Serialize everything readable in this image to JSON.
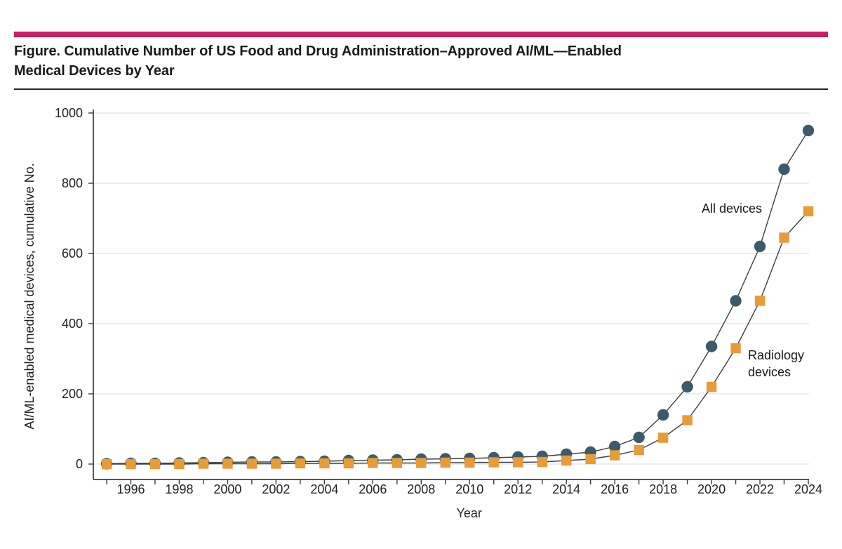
{
  "header": {
    "title_line1": "Figure. Cumulative Number of US Food and Drug Administration–Approved AI/ML—Enabled",
    "title_line2": "Medical Devices by Year"
  },
  "colors": {
    "accent_bar": "#c81e63",
    "title_text": "#1a1a1a",
    "axis": "#3b3b3b",
    "gridline": "#e9e9e9",
    "tick_text": "#222222",
    "line": "#3f3f3f",
    "all_devices_marker": "#3d5a6c",
    "radiology_marker": "#e89b37",
    "annotation_text": "#1a1a1a"
  },
  "chart_data": {
    "type": "line",
    "title": "Cumulative Number of US Food and Drug Administration–Approved AI/ML—Enabled Medical Devices by Year",
    "xlabel": "Year",
    "ylabel": "AI/ML-enabled medical devices, cumulative No.",
    "x": [
      1995,
      1996,
      1997,
      1998,
      1999,
      2000,
      2001,
      2002,
      2003,
      2004,
      2005,
      2006,
      2007,
      2008,
      2009,
      2010,
      2011,
      2012,
      2013,
      2014,
      2015,
      2016,
      2017,
      2018,
      2019,
      2020,
      2021,
      2022,
      2023,
      2024
    ],
    "xtick_labels": [
      1996,
      1998,
      2000,
      2002,
      2004,
      2006,
      2008,
      2010,
      2012,
      2014,
      2016,
      2018,
      2020,
      2022,
      2024
    ],
    "yticks": [
      0,
      200,
      400,
      600,
      800,
      1000
    ],
    "ylim": [
      0,
      1000
    ],
    "grid": "horizontal",
    "legend_position": "inline-annotations",
    "series": [
      {
        "name": "All devices",
        "marker": "circle",
        "color": "#3d5a6c",
        "values": [
          1,
          2,
          2,
          3,
          4,
          5,
          6,
          6,
          7,
          8,
          10,
          11,
          12,
          14,
          15,
          16,
          18,
          20,
          22,
          28,
          34,
          50,
          76,
          140,
          220,
          335,
          465,
          620,
          840,
          950
        ]
      },
      {
        "name": "Radiology devices",
        "marker": "square",
        "color": "#e89b37",
        "values": [
          0,
          0,
          0,
          0,
          1,
          1,
          1,
          1,
          2,
          2,
          2,
          3,
          3,
          3,
          4,
          4,
          5,
          5,
          6,
          10,
          14,
          25,
          40,
          75,
          125,
          220,
          330,
          465,
          645,
          720
        ]
      }
    ],
    "annotations": [
      {
        "text": "All devices"
      },
      {
        "text": "Radiology\ndevices"
      }
    ]
  }
}
